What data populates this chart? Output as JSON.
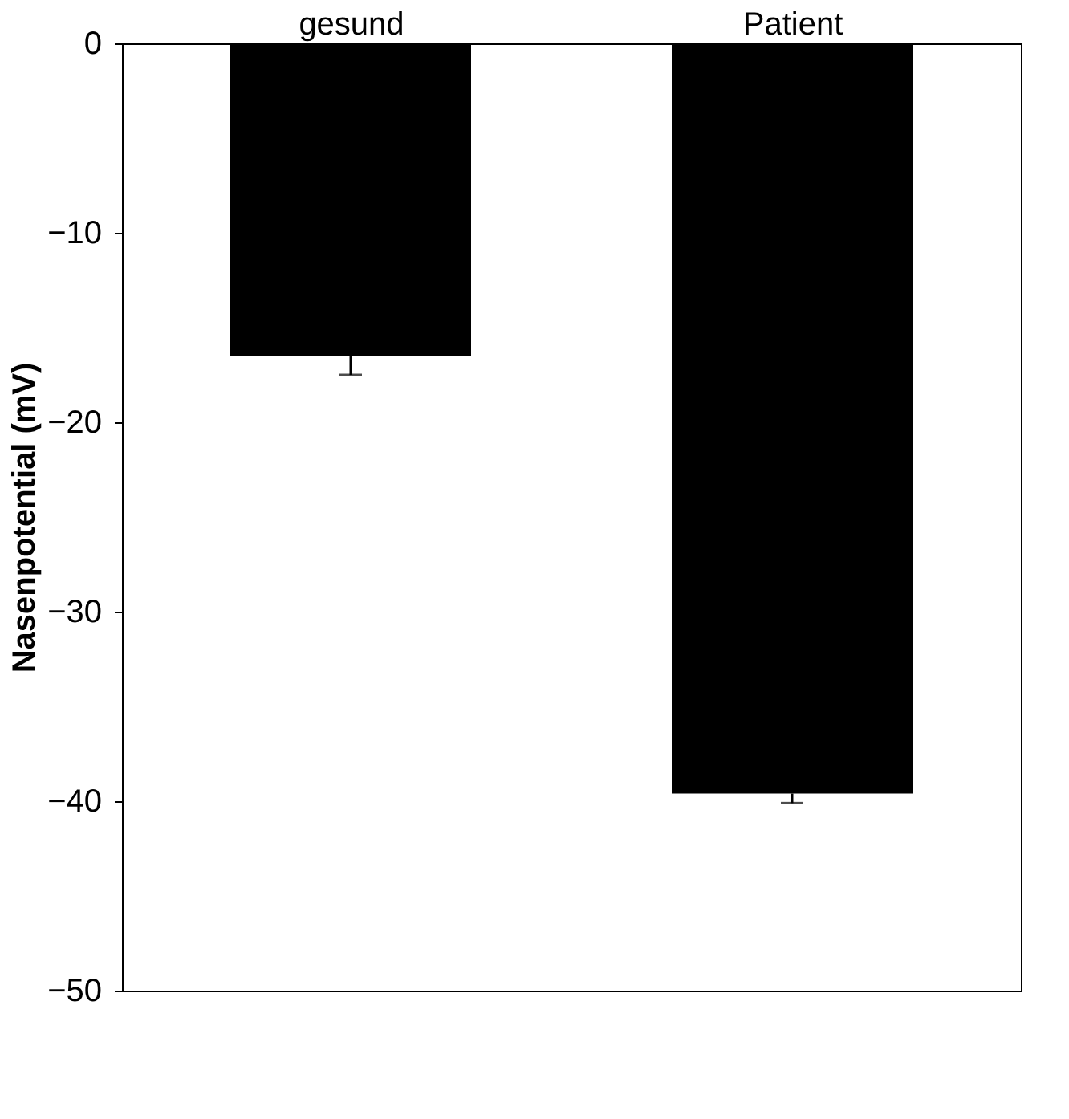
{
  "chart_data": {
    "type": "bar",
    "ylabel": "Nasenpotential  (mV)",
    "categories": [
      "gesund",
      "Patient"
    ],
    "values": [
      -16.5,
      -39.6
    ],
    "color": "#000000",
    "errors": [
      [
        -17.5,
        -16.5
      ],
      [
        -40.1,
        -39.6
      ]
    ],
    "ylim": [
      -50,
      0
    ],
    "yticks": [
      0,
      -10,
      -20,
      -30,
      -40,
      -50
    ],
    "grid": false
  }
}
